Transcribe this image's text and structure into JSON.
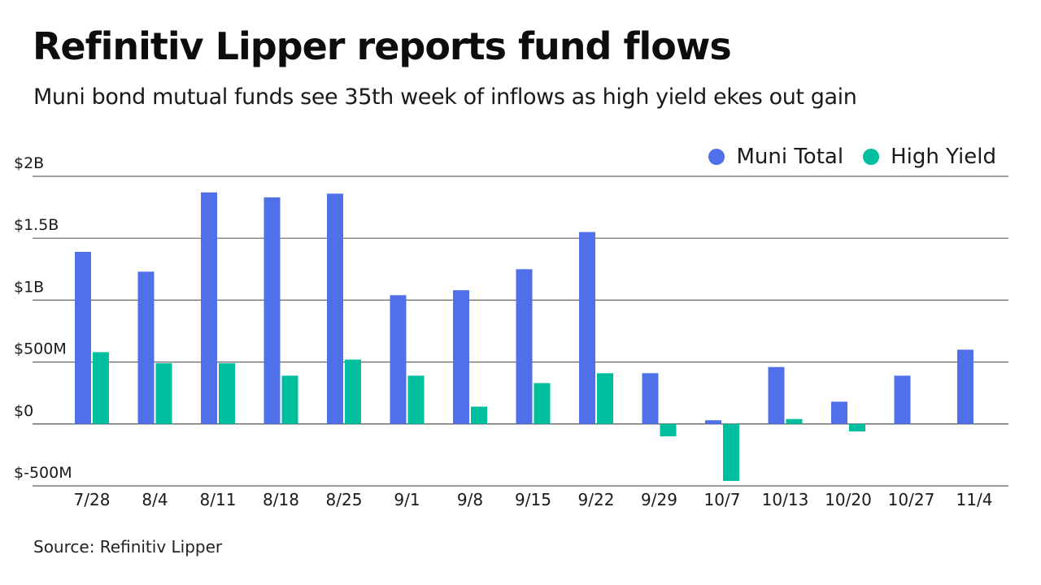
{
  "header": {
    "title": "Refinitiv Lipper reports fund flows",
    "subtitle": "Muni bond mutual funds see 35th week of inflows as high yield ekes out gain"
  },
  "footer": {
    "source": "Source: Refinitiv Lipper"
  },
  "colors": {
    "muni_total": "#5070EA",
    "high_yield": "#00BF9E",
    "gridline": "#555555"
  },
  "chart_data": {
    "type": "bar",
    "title": "Refinitiv Lipper reports fund flows",
    "subtitle": "Muni bond mutual funds see 35th week of inflows as high yield ekes out gain",
    "xlabel": "",
    "ylabel": "",
    "units": "USD billions",
    "categories": [
      "7/28",
      "8/4",
      "8/11",
      "8/18",
      "8/25",
      "9/1",
      "9/8",
      "9/15",
      "9/22",
      "9/29",
      "10/7",
      "10/13",
      "10/20",
      "10/27",
      "11/4"
    ],
    "series": [
      {
        "name": "Muni Total",
        "color": "#5070EA",
        "values": [
          1.39,
          1.23,
          1.87,
          1.83,
          1.86,
          1.04,
          1.08,
          1.25,
          1.55,
          0.41,
          0.03,
          0.46,
          0.18,
          0.39,
          0.6
        ]
      },
      {
        "name": "High Yield",
        "color": "#00BF9E",
        "values": [
          0.58,
          0.49,
          0.49,
          0.39,
          0.52,
          0.39,
          0.14,
          0.33,
          0.41,
          -0.1,
          -0.46,
          0.04,
          -0.06,
          0.0,
          null
        ]
      }
    ],
    "yticks": [
      {
        "value": 2.0,
        "label": "$2B"
      },
      {
        "value": 1.5,
        "label": "$1.5B"
      },
      {
        "value": 1.0,
        "label": "$1B"
      },
      {
        "value": 0.5,
        "label": "$500M"
      },
      {
        "value": 0.0,
        "label": "$0"
      },
      {
        "value": -0.5,
        "label": "$-500M"
      }
    ],
    "ylim": [
      -0.5,
      2.0
    ],
    "grid": true,
    "legend_position": "top-right"
  }
}
